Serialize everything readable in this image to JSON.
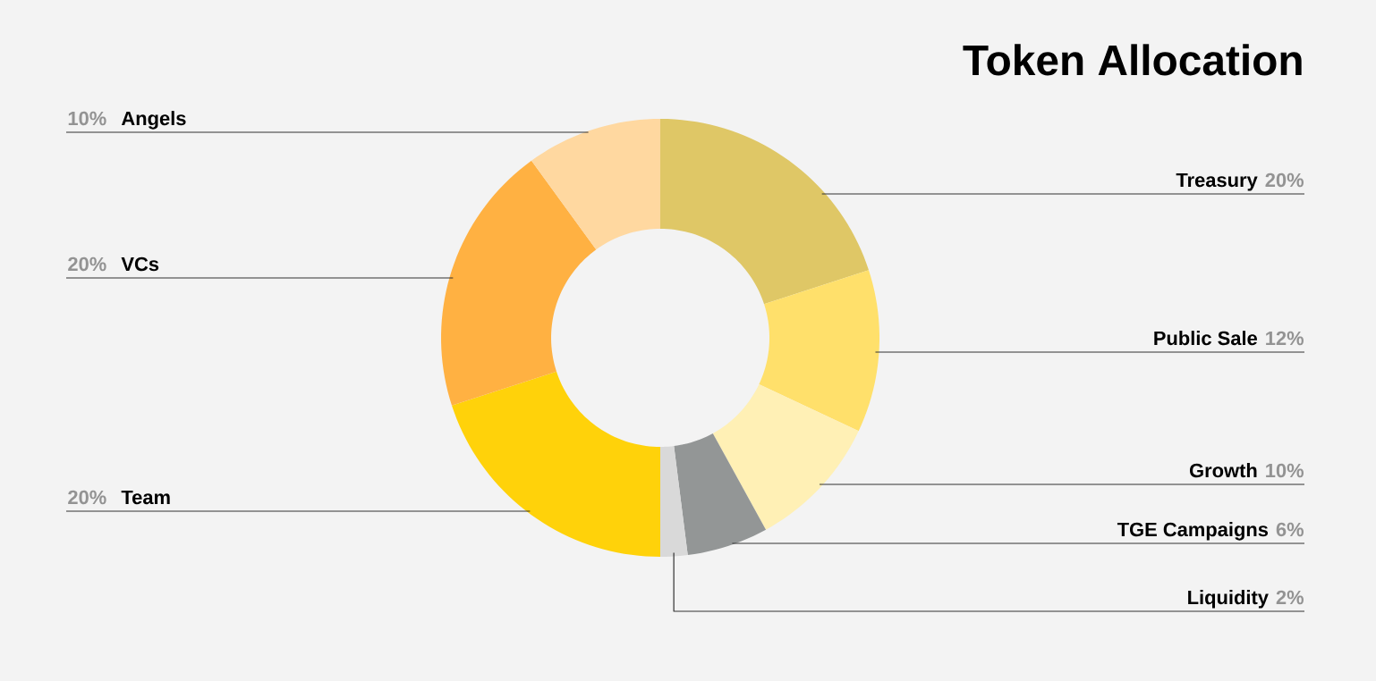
{
  "chart_data": {
    "type": "donut",
    "title": "Token Allocation",
    "categories": [
      "Treasury",
      "Public Sale",
      "Growth",
      "TGE Campaigns",
      "Liquidity",
      "Team",
      "VCs",
      "Angels"
    ],
    "values": [
      20,
      12,
      10,
      6,
      2,
      20,
      20,
      10
    ],
    "value_labels": [
      "20%",
      "12%",
      "10%",
      "6%",
      "2%",
      "20%",
      "20%",
      "10%"
    ],
    "colors": [
      "#dfc766",
      "#ffe06b",
      "#fff0b5",
      "#939696",
      "#d9d9d9",
      "#ffd20a",
      "#ffb142",
      "#ffd8a0"
    ]
  }
}
